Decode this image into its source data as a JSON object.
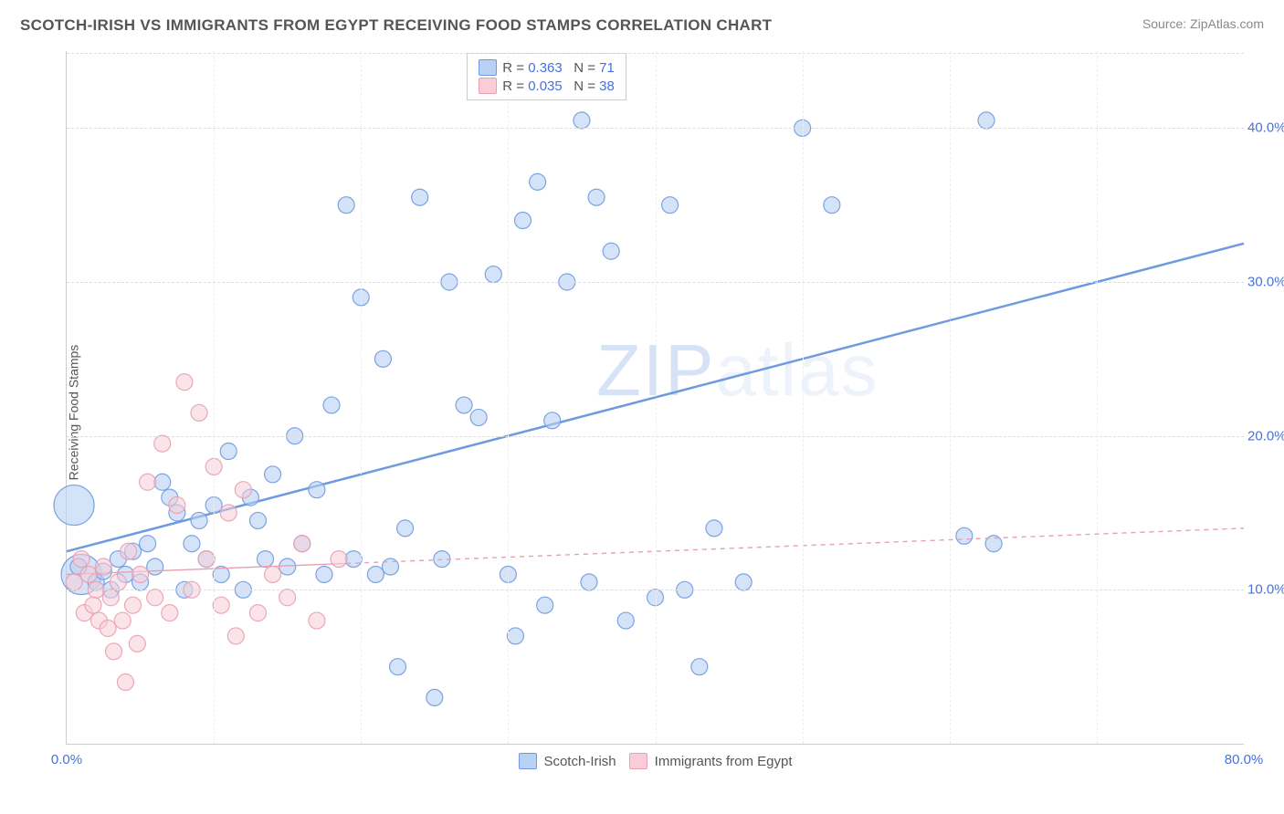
{
  "header": {
    "title": "SCOTCH-IRISH VS IMMIGRANTS FROM EGYPT RECEIVING FOOD STAMPS CORRELATION CHART",
    "source_prefix": "Source: ",
    "source_name": "ZipAtlas.com"
  },
  "watermark": {
    "zip": "ZIP",
    "atlas": "atlas",
    "color": "#6f9ae0"
  },
  "chart": {
    "type": "scatter",
    "ylabel": "Receiving Food Stamps",
    "xlim": [
      0,
      80
    ],
    "ylim": [
      0,
      45
    ],
    "xticks": [
      0,
      80
    ],
    "xtick_labels": [
      "0.0%",
      "80.0%"
    ],
    "yticks": [
      10,
      20,
      30,
      40
    ],
    "ytick_labels": [
      "10.0%",
      "20.0%",
      "30.0%",
      "40.0%"
    ],
    "vgrid_at": [
      10,
      20,
      30,
      40,
      50,
      60,
      70
    ],
    "tick_color": "#4472e0",
    "grid_color": "#dddddd",
    "background_color": "#ffffff",
    "axis_color": "#cccccc",
    "marker_radius": 9,
    "marker_radius_large": 22,
    "series": [
      {
        "name": "Scotch-Irish",
        "color": "#6f9ae0",
        "fill": "#b9d1f4",
        "fill_opacity": 0.6,
        "stroke_opacity": 0.9,
        "R": "0.363",
        "N": "71",
        "points": [
          [
            0.5,
            15.5,
            22
          ],
          [
            1.0,
            11.0,
            22
          ],
          [
            0.8,
            11.5
          ],
          [
            2.0,
            10.5
          ],
          [
            2.5,
            11.2
          ],
          [
            3.0,
            10.0
          ],
          [
            3.5,
            12.0
          ],
          [
            4.0,
            11.0
          ],
          [
            4.5,
            12.5
          ],
          [
            5.0,
            10.5
          ],
          [
            5.5,
            13.0
          ],
          [
            6.0,
            11.5
          ],
          [
            6.5,
            17.0
          ],
          [
            7.0,
            16.0
          ],
          [
            7.5,
            15.0
          ],
          [
            8.0,
            10.0
          ],
          [
            8.5,
            13.0
          ],
          [
            9.0,
            14.5
          ],
          [
            9.5,
            12.0
          ],
          [
            10.0,
            15.5
          ],
          [
            10.5,
            11.0
          ],
          [
            11.0,
            19.0
          ],
          [
            12.0,
            10.0
          ],
          [
            12.5,
            16.0
          ],
          [
            13.0,
            14.5
          ],
          [
            13.5,
            12.0
          ],
          [
            14.0,
            17.5
          ],
          [
            15.0,
            11.5
          ],
          [
            15.5,
            20.0
          ],
          [
            16.0,
            13.0
          ],
          [
            17.0,
            16.5
          ],
          [
            17.5,
            11.0
          ],
          [
            18.0,
            22.0
          ],
          [
            19.0,
            35.0
          ],
          [
            19.5,
            12.0
          ],
          [
            20.0,
            29.0
          ],
          [
            21.0,
            11.0
          ],
          [
            21.5,
            25.0
          ],
          [
            22.0,
            11.5
          ],
          [
            22.5,
            5.0
          ],
          [
            23.0,
            14.0
          ],
          [
            24.0,
            35.5
          ],
          [
            25.0,
            3.0
          ],
          [
            25.5,
            12.0
          ],
          [
            26.0,
            30.0
          ],
          [
            27.0,
            22.0
          ],
          [
            28.0,
            21.2
          ],
          [
            29.0,
            30.5
          ],
          [
            30.0,
            11.0
          ],
          [
            30.5,
            7.0
          ],
          [
            31.0,
            34.0
          ],
          [
            32.0,
            36.5
          ],
          [
            32.5,
            9.0
          ],
          [
            33.0,
            21.0
          ],
          [
            34.0,
            30.0
          ],
          [
            35.0,
            40.5
          ],
          [
            35.5,
            10.5
          ],
          [
            36.0,
            35.5
          ],
          [
            37.0,
            32.0
          ],
          [
            38.0,
            8.0
          ],
          [
            40.0,
            9.5
          ],
          [
            41.0,
            35.0
          ],
          [
            42.0,
            10.0
          ],
          [
            43.0,
            5.0
          ],
          [
            44.0,
            14.0
          ],
          [
            46.0,
            10.5
          ],
          [
            50.0,
            40.0
          ],
          [
            52.0,
            35.0
          ],
          [
            61.0,
            13.5
          ],
          [
            62.5,
            40.5
          ],
          [
            63.0,
            13.0
          ]
        ],
        "trend": {
          "y_at_x0": 12.5,
          "y_at_xmax": 32.5,
          "dash": null,
          "width": 2.5
        }
      },
      {
        "name": "Immigrants from Egypt",
        "color": "#e99fb0",
        "fill": "#f8cdd7",
        "fill_opacity": 0.55,
        "stroke_opacity": 0.9,
        "R": "0.035",
        "N": "38",
        "points": [
          [
            0.5,
            10.5
          ],
          [
            1.0,
            12.0
          ],
          [
            1.2,
            8.5
          ],
          [
            1.5,
            11.0
          ],
          [
            1.8,
            9.0
          ],
          [
            2.0,
            10.0
          ],
          [
            2.2,
            8.0
          ],
          [
            2.5,
            11.5
          ],
          [
            2.8,
            7.5
          ],
          [
            3.0,
            9.5
          ],
          [
            3.2,
            6.0
          ],
          [
            3.5,
            10.5
          ],
          [
            3.8,
            8.0
          ],
          [
            4.0,
            4.0
          ],
          [
            4.2,
            12.5
          ],
          [
            4.5,
            9.0
          ],
          [
            4.8,
            6.5
          ],
          [
            5.0,
            11.0
          ],
          [
            5.5,
            17.0
          ],
          [
            6.0,
            9.5
          ],
          [
            6.5,
            19.5
          ],
          [
            7.0,
            8.5
          ],
          [
            7.5,
            15.5
          ],
          [
            8.0,
            23.5
          ],
          [
            8.5,
            10.0
          ],
          [
            9.0,
            21.5
          ],
          [
            9.5,
            12.0
          ],
          [
            10.0,
            18.0
          ],
          [
            10.5,
            9.0
          ],
          [
            11.0,
            15.0
          ],
          [
            11.5,
            7.0
          ],
          [
            12.0,
            16.5
          ],
          [
            13.0,
            8.5
          ],
          [
            14.0,
            11.0
          ],
          [
            15.0,
            9.5
          ],
          [
            16.0,
            13.0
          ],
          [
            17.0,
            8.0
          ],
          [
            18.5,
            12.0
          ]
        ],
        "trend": {
          "y_at_x0": 11.0,
          "y_at_xmax": 14.0,
          "solid_until_x": 19,
          "dash": "5,5",
          "width": 1.4
        }
      }
    ]
  },
  "legend_top": {
    "R_label": "R =",
    "N_label": "N ="
  },
  "legend_bottom": {
    "items": [
      "Scotch-Irish",
      "Immigrants from Egypt"
    ]
  }
}
